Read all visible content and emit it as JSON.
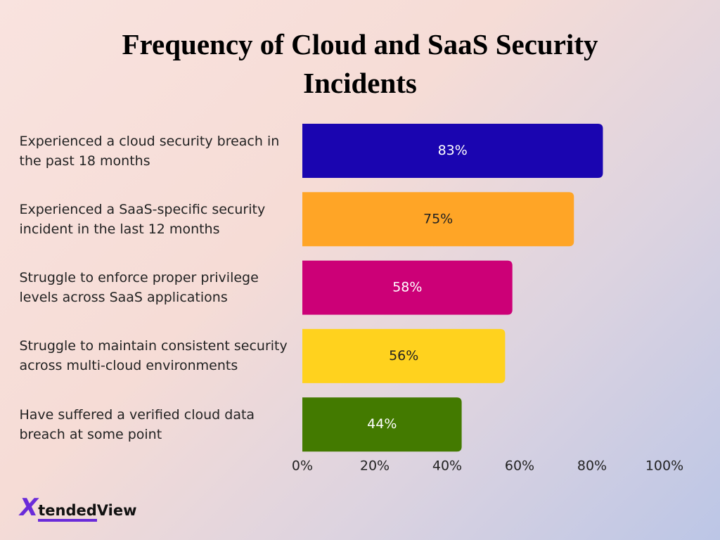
{
  "chart_data": {
    "type": "bar",
    "orientation": "horizontal",
    "title": "Frequency of Cloud and SaaS Security Incidents",
    "categories": [
      "Experienced a cloud security breach in the past 18 months",
      "Experienced a SaaS-specific security incident in the last 12 months",
      "Struggle to enforce proper privilege levels across SaaS applications",
      "Struggle to maintain consistent security across multi-cloud environments",
      "Have suffered a verified cloud data breach at some point"
    ],
    "values": [
      83,
      75,
      58,
      56,
      44
    ],
    "value_labels": [
      "83%",
      "75%",
      "58%",
      "56%",
      "44%"
    ],
    "colors": [
      "#1a05b0",
      "#ffa526",
      "#cc0077",
      "#ffd21e",
      "#437a00"
    ],
    "value_label_colors": [
      "#ffffff",
      "#222222",
      "#ffffff",
      "#222222",
      "#ffffff"
    ],
    "xlim": [
      0,
      100
    ],
    "xticks": [
      {
        "value": 0,
        "label": "0%"
      },
      {
        "value": 20,
        "label": "20%"
      },
      {
        "value": 40,
        "label": "40%"
      },
      {
        "value": 60,
        "label": "60%"
      },
      {
        "value": 80,
        "label": "80%"
      },
      {
        "value": 100,
        "label": "100%"
      }
    ],
    "grid": false
  },
  "logo": {
    "mark": "X",
    "text": "tended",
    "text2": "View"
  }
}
